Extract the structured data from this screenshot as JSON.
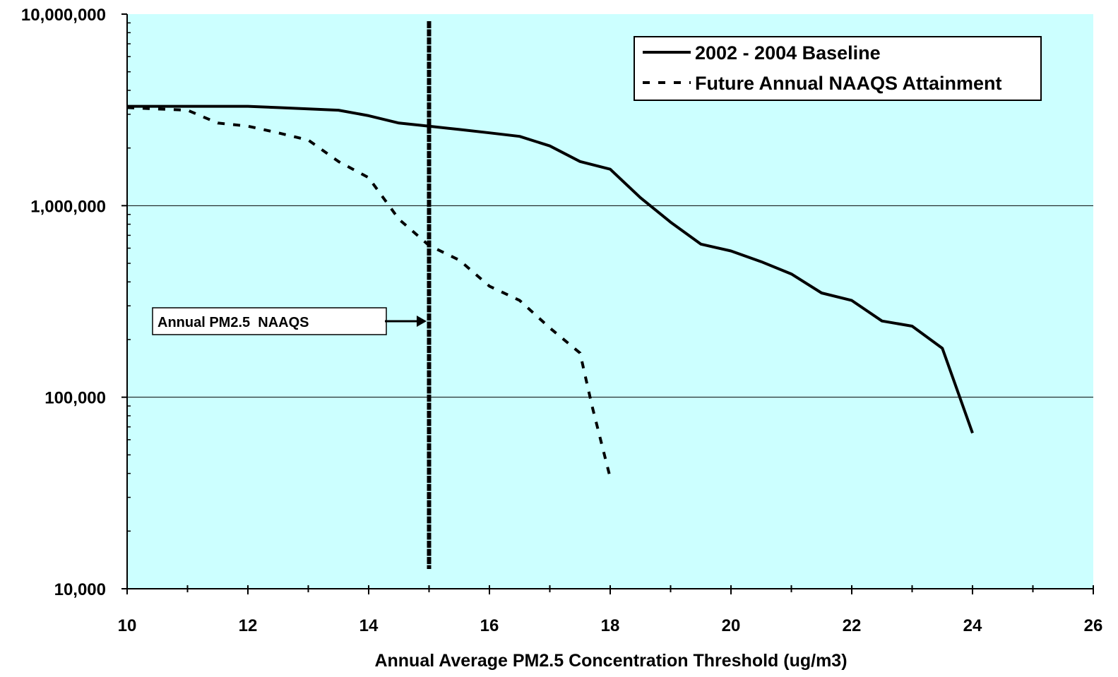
{
  "chart_data": {
    "type": "line",
    "title": "",
    "xlabel": "Annual Average PM2.5 Concentration Threshold (ug/m3)",
    "ylabel": "",
    "xlim": [
      10,
      26
    ],
    "ylim": [
      10000,
      10000000
    ],
    "y_scale": "log",
    "x_ticks": [
      "10",
      "12",
      "14",
      "16",
      "18",
      "20",
      "22",
      "24",
      "26"
    ],
    "x_tick_values": [
      10,
      12,
      14,
      16,
      18,
      20,
      22,
      24,
      26
    ],
    "y_ticks": [
      "10,000",
      "100,000",
      "1,000,000",
      "10,000,000"
    ],
    "y_tick_values": [
      10000,
      100000,
      1000000,
      10000000
    ],
    "grid": "horizontal major",
    "background_color": "#ccffff",
    "legend_position": "top-right",
    "series": [
      {
        "name": "2002 - 2004 Baseline",
        "style": "solid",
        "x": [
          10,
          10.5,
          11,
          11.5,
          12,
          12.5,
          13,
          13.5,
          14,
          14.5,
          15,
          15.5,
          16,
          16.5,
          17,
          17.5,
          18,
          18.5,
          19,
          19.5,
          20,
          20.5,
          21,
          21.5,
          22,
          22.5,
          23,
          23.5,
          24
        ],
        "y": [
          3300000,
          3300000,
          3300000,
          3300000,
          3300000,
          3250000,
          3200000,
          3150000,
          2950000,
          2700000,
          2600000,
          2500000,
          2400000,
          2300000,
          2050000,
          1700000,
          1550000,
          1100000,
          820000,
          630000,
          580000,
          510000,
          440000,
          350000,
          320000,
          250000,
          235000,
          180000,
          65000
        ]
      },
      {
        "name": "Future Annual NAAQS Attainment",
        "style": "dashed",
        "x": [
          10,
          10.5,
          11,
          11.5,
          12,
          12.5,
          13,
          13.5,
          14,
          14.5,
          15,
          15.5,
          16,
          16.5,
          17,
          17.5,
          17.7,
          18
        ],
        "y": [
          3250000,
          3200000,
          3150000,
          2700000,
          2600000,
          2400000,
          2200000,
          1700000,
          1400000,
          850000,
          620000,
          520000,
          380000,
          320000,
          230000,
          170000,
          90000,
          38000
        ]
      }
    ],
    "reference_line": {
      "x": 15,
      "label": "Annual PM2.5  NAAQS"
    }
  }
}
